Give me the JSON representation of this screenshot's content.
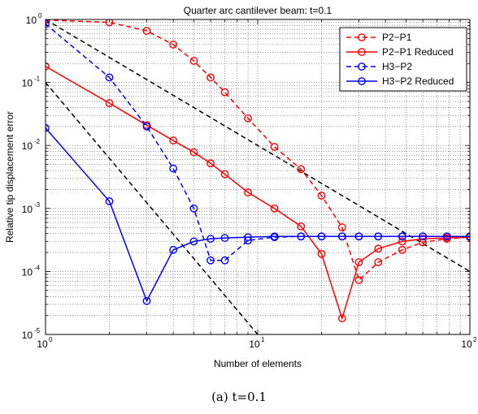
{
  "caption": "(a) t=0.1",
  "chart_data": {
    "type": "line",
    "title": "Quarter arc cantilever beam: t=0.1",
    "xlabel": "Number of elements",
    "ylabel": "Relative tip displacement error",
    "xscale": "log",
    "yscale": "log",
    "xlim": [
      1,
      100
    ],
    "ylim": [
      1e-05,
      1
    ],
    "x_ticks": [
      {
        "base": "10",
        "exp": "0",
        "value": 1
      },
      {
        "base": "10",
        "exp": "1",
        "value": 10
      },
      {
        "base": "10",
        "exp": "2",
        "value": 100
      }
    ],
    "y_ticks": [
      {
        "base": "10",
        "exp": "-5",
        "value": 1e-05
      },
      {
        "base": "10",
        "exp": "-4",
        "value": 0.0001
      },
      {
        "base": "10",
        "exp": "-3",
        "value": 0.001
      },
      {
        "base": "10",
        "exp": "-2",
        "value": 0.01
      },
      {
        "base": "10",
        "exp": "-1",
        "value": 0.1
      },
      {
        "base": "10",
        "exp": "0",
        "value": 1
      }
    ],
    "grid": true,
    "legend_position": "top-right",
    "series": [
      {
        "name": "P2−P1",
        "color": "#ff0000",
        "dashed": true,
        "marker": "circle",
        "x": [
          1,
          2,
          3,
          4,
          5,
          6,
          7,
          9,
          12,
          16,
          20,
          25,
          30,
          37,
          48,
          60,
          78,
          100
        ],
        "y": [
          0.98,
          0.9,
          0.66,
          0.4,
          0.22,
          0.12,
          0.07,
          0.027,
          0.0095,
          0.0042,
          0.0016,
          0.0005,
          7.3e-05,
          0.00014,
          0.00022,
          0.00029,
          0.00033,
          0.00035
        ]
      },
      {
        "name": "P2−P1 Reduced",
        "color": "#ff0000",
        "dashed": false,
        "marker": "circle",
        "x": [
          1,
          2,
          3,
          4,
          5,
          6,
          7,
          9,
          12,
          16,
          20,
          25,
          30,
          37,
          48,
          60,
          78,
          100
        ],
        "y": [
          0.18,
          0.047,
          0.021,
          0.012,
          0.0078,
          0.0052,
          0.0035,
          0.0018,
          0.001,
          0.00052,
          0.00019,
          1.8e-05,
          0.00014,
          0.00023,
          0.0003,
          0.00033,
          0.00034,
          0.00035
        ]
      },
      {
        "name": "H3−P2",
        "color": "#0000ff",
        "dashed": true,
        "marker": "circle",
        "x": [
          1,
          2,
          3,
          4,
          5,
          6,
          7,
          9,
          12,
          16,
          20,
          25,
          30,
          37,
          48,
          60,
          78,
          100
        ],
        "y": [
          0.85,
          0.12,
          0.02,
          0.0043,
          0.001,
          0.00015,
          0.00015,
          0.00031,
          0.00035,
          0.00036,
          0.00036,
          0.00036,
          0.00036,
          0.00036,
          0.00036,
          0.00036,
          0.00036,
          0.00036
        ]
      },
      {
        "name": "H3−P2 Reduced",
        "color": "#0000ff",
        "dashed": false,
        "marker": "circle",
        "x": [
          1,
          2,
          3,
          4,
          5,
          6,
          7,
          9,
          12,
          16,
          20,
          25,
          30,
          37,
          48,
          60,
          78,
          100
        ],
        "y": [
          0.019,
          0.0013,
          3.4e-05,
          0.00022,
          0.0003,
          0.00033,
          0.00034,
          0.00035,
          0.00036,
          0.00036,
          0.00036,
          0.00036,
          0.00036,
          0.00036,
          0.00036,
          0.00036,
          0.00036,
          0.00036
        ]
      }
    ],
    "reference_lines": [
      {
        "color": "#000000",
        "dashed": true,
        "x": [
          1,
          100
        ],
        "y": [
          1,
          0.0001
        ]
      },
      {
        "color": "#000000",
        "dashed": true,
        "x": [
          1,
          10
        ],
        "y": [
          0.1,
          1e-05
        ]
      }
    ]
  }
}
